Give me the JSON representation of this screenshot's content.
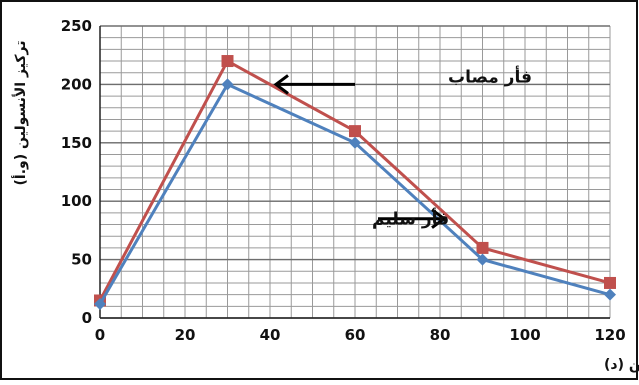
{
  "chart_data": {
    "type": "line",
    "xlabel": "الزمن (د)",
    "ylabel": "تركيز الأنسولين (و.أ)",
    "xlim": [
      0,
      120
    ],
    "ylim": [
      0,
      250
    ],
    "x_ticks": [
      0,
      20,
      40,
      60,
      80,
      100,
      120
    ],
    "y_ticks": [
      0,
      50,
      100,
      150,
      200,
      250
    ],
    "grid": true,
    "series": [
      {
        "name": "فأر مصاب",
        "color": "#c0504d",
        "marker": "square",
        "x": [
          0,
          30,
          60,
          90,
          120
        ],
        "y": [
          15,
          220,
          160,
          60,
          30
        ]
      },
      {
        "name": "فأر سليم",
        "color": "#4f81bd",
        "marker": "diamond",
        "x": [
          0,
          30,
          60,
          90,
          120
        ],
        "y": [
          12,
          200,
          150,
          50,
          20
        ]
      }
    ]
  }
}
